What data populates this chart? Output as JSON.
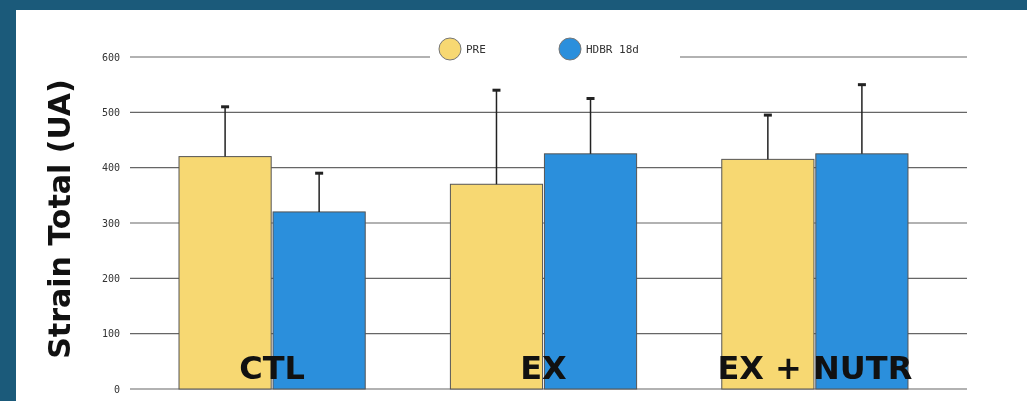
{
  "chart_data": {
    "type": "bar",
    "ylabel": "Strain Total (UA)",
    "categories": [
      "CTL",
      "EX",
      "EX + NUTR"
    ],
    "series": [
      {
        "name": "PRE",
        "color": "#f7d872",
        "values": [
          420,
          370,
          415
        ],
        "errors": [
          [
            420,
            510
          ],
          [
            370,
            540
          ],
          [
            415,
            495
          ]
        ]
      },
      {
        "name": "HDBR 18d",
        "color": "#2b8fdc",
        "values": [
          320,
          425,
          425
        ],
        "errors": [
          [
            320,
            390
          ],
          [
            425,
            525
          ],
          [
            425,
            550
          ]
        ]
      }
    ],
    "ylim": [
      0,
      600
    ],
    "yticks": [
      0,
      100,
      200,
      300,
      400,
      500,
      600
    ],
    "grid": "y",
    "legend": "top"
  }
}
